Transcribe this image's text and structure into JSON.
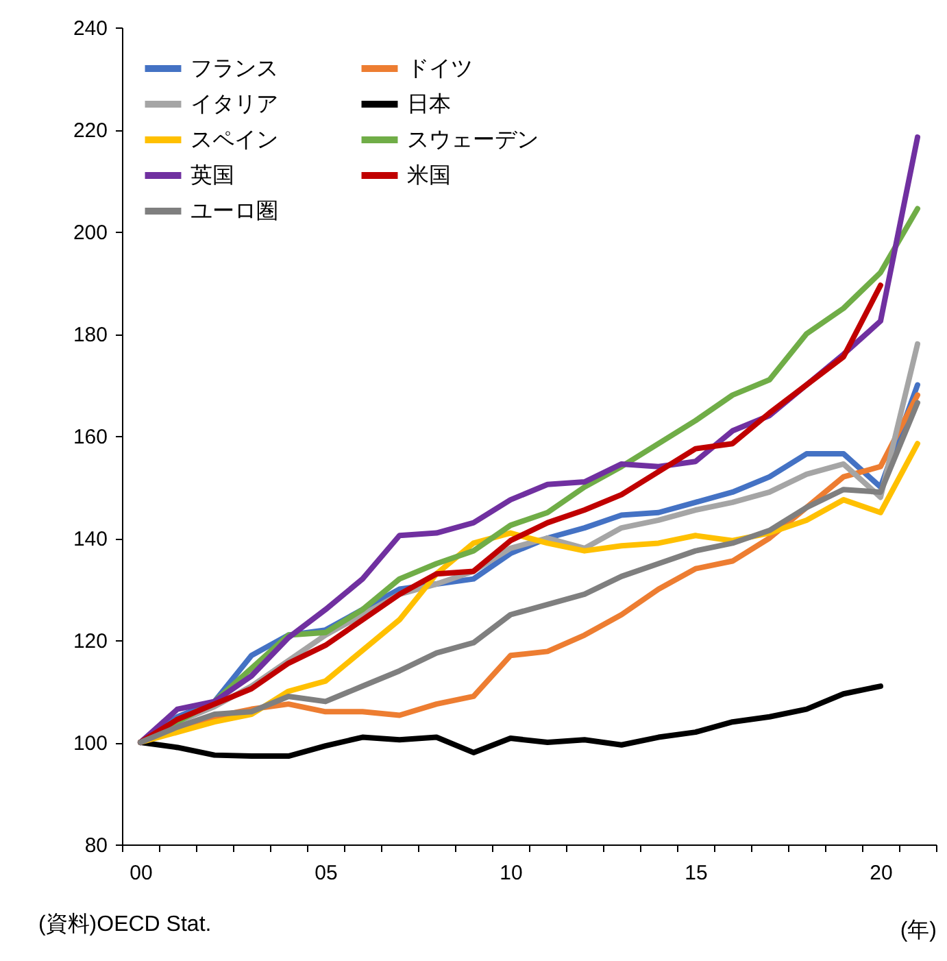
{
  "chart_data": {
    "type": "line",
    "xlabel": "(年)",
    "annotations": [
      "(資料)OECD Stat."
    ],
    "categories": [
      "00",
      null,
      null,
      null,
      null,
      "05",
      null,
      null,
      null,
      null,
      "10",
      null,
      null,
      null,
      null,
      "15",
      null,
      null,
      null,
      null,
      "20",
      null
    ],
    "ylim": [
      80,
      240
    ],
    "yticks": [
      80,
      100,
      120,
      140,
      160,
      180,
      200,
      220,
      240
    ],
    "grid": false,
    "legend": "top left",
    "marker": "none",
    "line_style": "solid",
    "series": [
      {
        "name": "フランス",
        "color": "#4472c4",
        "values": [
          100,
          105,
          108,
          117,
          121,
          122,
          126,
          130,
          131,
          132,
          137,
          140,
          142,
          144.5,
          145,
          147,
          149,
          152,
          156.5,
          156.5,
          150,
          170
        ]
      },
      {
        "name": "ドイツ",
        "color": "#ed7d31",
        "values": [
          100,
          102.5,
          105,
          106.5,
          107.5,
          106,
          106,
          105.3,
          107.5,
          109,
          117,
          117.8,
          121,
          125,
          130,
          134,
          135.5,
          140,
          146,
          152,
          154,
          168
        ]
      },
      {
        "name": "イタリア",
        "color": "#a5a5a5",
        "values": [
          100,
          104,
          107,
          111,
          116,
          121,
          125,
          129,
          131,
          133.5,
          138,
          140,
          138,
          142,
          143.5,
          145.5,
          147,
          149,
          152.5,
          154.5,
          148,
          178
        ]
      },
      {
        "name": "日本",
        "color": "#000000",
        "values": [
          100,
          99,
          97.5,
          97.3,
          97.3,
          99.3,
          101,
          100.5,
          101,
          98,
          100.8,
          100,
          100.5,
          99.5,
          101,
          102,
          104,
          105,
          106.5,
          109.5,
          111,
          null
        ]
      },
      {
        "name": "スペイン",
        "color": "#ffc000",
        "values": [
          100,
          102,
          104,
          105.5,
          110,
          112,
          118,
          124,
          133,
          139,
          141,
          139,
          137.5,
          138.5,
          139,
          140.5,
          139.5,
          141,
          143.5,
          147.5,
          145,
          158.5
        ]
      },
      {
        "name": "スウェーデン",
        "color": "#70ad47",
        "values": [
          100,
          104,
          108,
          114.5,
          121,
          121.5,
          126,
          132,
          135,
          137.5,
          142.5,
          145,
          150,
          154,
          158.5,
          163,
          168,
          171,
          180,
          185,
          192,
          204.5
        ]
      },
      {
        "name": "英国",
        "color": "#7030a0",
        "values": [
          100,
          106.5,
          108,
          113,
          120.5,
          126,
          132,
          140.5,
          141,
          143,
          147.5,
          150.5,
          151,
          154.5,
          154,
          155,
          161,
          164,
          170,
          176,
          182.5,
          218.5
        ]
      },
      {
        "name": "米国",
        "color": "#c00000",
        "values": [
          100,
          104.5,
          107.5,
          110.5,
          115.5,
          119,
          124,
          129,
          133,
          133.5,
          139.5,
          143,
          145.5,
          148.5,
          153,
          157.5,
          158.5,
          164.5,
          170,
          175.5,
          189.5,
          null
        ]
      },
      {
        "name": "ユーロ圏",
        "color": "#7f7f7f",
        "values": [
          100,
          103,
          105.5,
          106,
          109,
          108,
          111,
          114,
          117.5,
          119.5,
          125,
          127,
          129,
          132.5,
          135,
          137.5,
          139,
          141.5,
          146,
          149.5,
          149,
          166.5
        ]
      }
    ]
  }
}
